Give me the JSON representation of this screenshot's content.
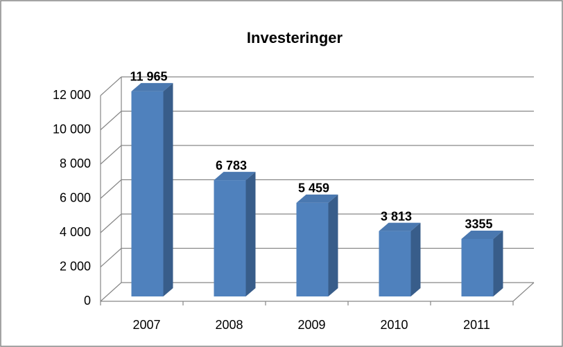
{
  "chart_data": {
    "type": "bar3d",
    "title": "Investeringer",
    "categories": [
      "2007",
      "2008",
      "2009",
      "2010",
      "2011"
    ],
    "values": [
      11965,
      6783,
      5459,
      3813,
      3355
    ],
    "value_labels": [
      "11 965",
      "6 783",
      "5 459",
      "3 813",
      "3355"
    ],
    "color": "#4f81bd",
    "ylim": [
      0,
      12000
    ],
    "yticks": [
      0,
      {
        "value": 2000,
        "label": "2 000"
      },
      {
        "value": 4000,
        "label": "4 000"
      },
      {
        "value": 6000,
        "label": "6 000"
      },
      {
        "value": 8000,
        "label": "8 000"
      },
      {
        "value": 10000,
        "label": "10 000"
      },
      {
        "value": 12000,
        "label": "12 000"
      }
    ],
    "grid": true
  }
}
